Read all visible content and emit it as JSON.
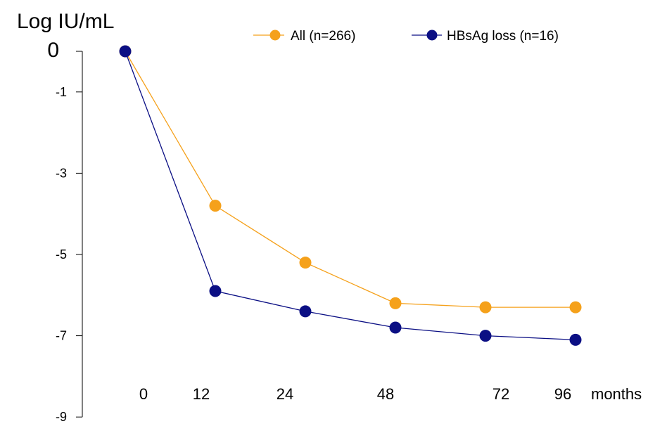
{
  "chart_data": {
    "type": "line",
    "title": "",
    "ylabel": "Log IU/mL",
    "xlabel": "months",
    "x_ticks": [
      "0",
      "12",
      "24",
      "48",
      "72",
      "96"
    ],
    "y_ticks": [
      0,
      -1,
      -3,
      -5,
      -7,
      -9
    ],
    "ylim": [
      -9,
      0
    ],
    "grid": false,
    "legend_position": "top-right",
    "series": [
      {
        "name": "All (n=266)",
        "color": "#F5A11B",
        "values": [
          0,
          -3.8,
          -5.2,
          -6.2,
          -6.3,
          -6.3
        ]
      },
      {
        "name": "HBsAg loss (n=16)",
        "color": "#0B0F84",
        "values": [
          0,
          -5.9,
          -6.4,
          -6.8,
          -7.0,
          -7.1
        ]
      }
    ]
  }
}
